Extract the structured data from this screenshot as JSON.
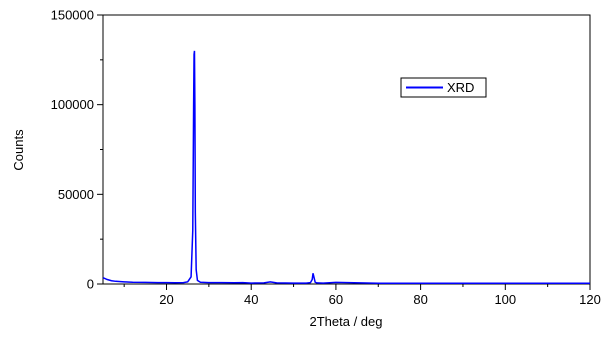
{
  "chart_data": {
    "type": "line",
    "title": "",
    "xlabel": "2Theta  / deg",
    "ylabel": "Counts",
    "xlim": [
      5,
      120
    ],
    "ylim": [
      0,
      150000
    ],
    "x_ticks": [
      20,
      40,
      60,
      80,
      100,
      120
    ],
    "x_tick_labels": [
      "20",
      "40",
      "60",
      "80",
      "100",
      "120"
    ],
    "y_ticks": [
      0,
      50000,
      100000,
      150000
    ],
    "y_tick_labels": [
      "0",
      "50000",
      "100000",
      "150000"
    ],
    "grid": false,
    "legend_position": "top-right",
    "series": [
      {
        "name": "XRD",
        "color": "#0000ff",
        "x": [
          5,
          6,
          7,
          8,
          10,
          12,
          15,
          18,
          20,
          22,
          24,
          25,
          25.8,
          26.2,
          26.4,
          26.5,
          26.6,
          26.7,
          26.8,
          27,
          27.3,
          28,
          30,
          33,
          36,
          38,
          40,
          43,
          44.5,
          46,
          50,
          53,
          54,
          54.4,
          54.6,
          54.8,
          55.1,
          55.5,
          57,
          60,
          70,
          80,
          90,
          100,
          110,
          120
        ],
        "y": [
          3500,
          2500,
          1800,
          1500,
          1200,
          1000,
          900,
          800,
          800,
          700,
          800,
          1200,
          4000,
          30000,
          100000,
          128000,
          130000,
          100000,
          40000,
          8000,
          2000,
          1000,
          800,
          800,
          700,
          800,
          500,
          600,
          1200,
          600,
          500,
          500,
          800,
          2500,
          6000,
          4000,
          1000,
          600,
          500,
          900,
          400,
          400,
          400,
          400,
          400,
          400
        ]
      }
    ]
  }
}
